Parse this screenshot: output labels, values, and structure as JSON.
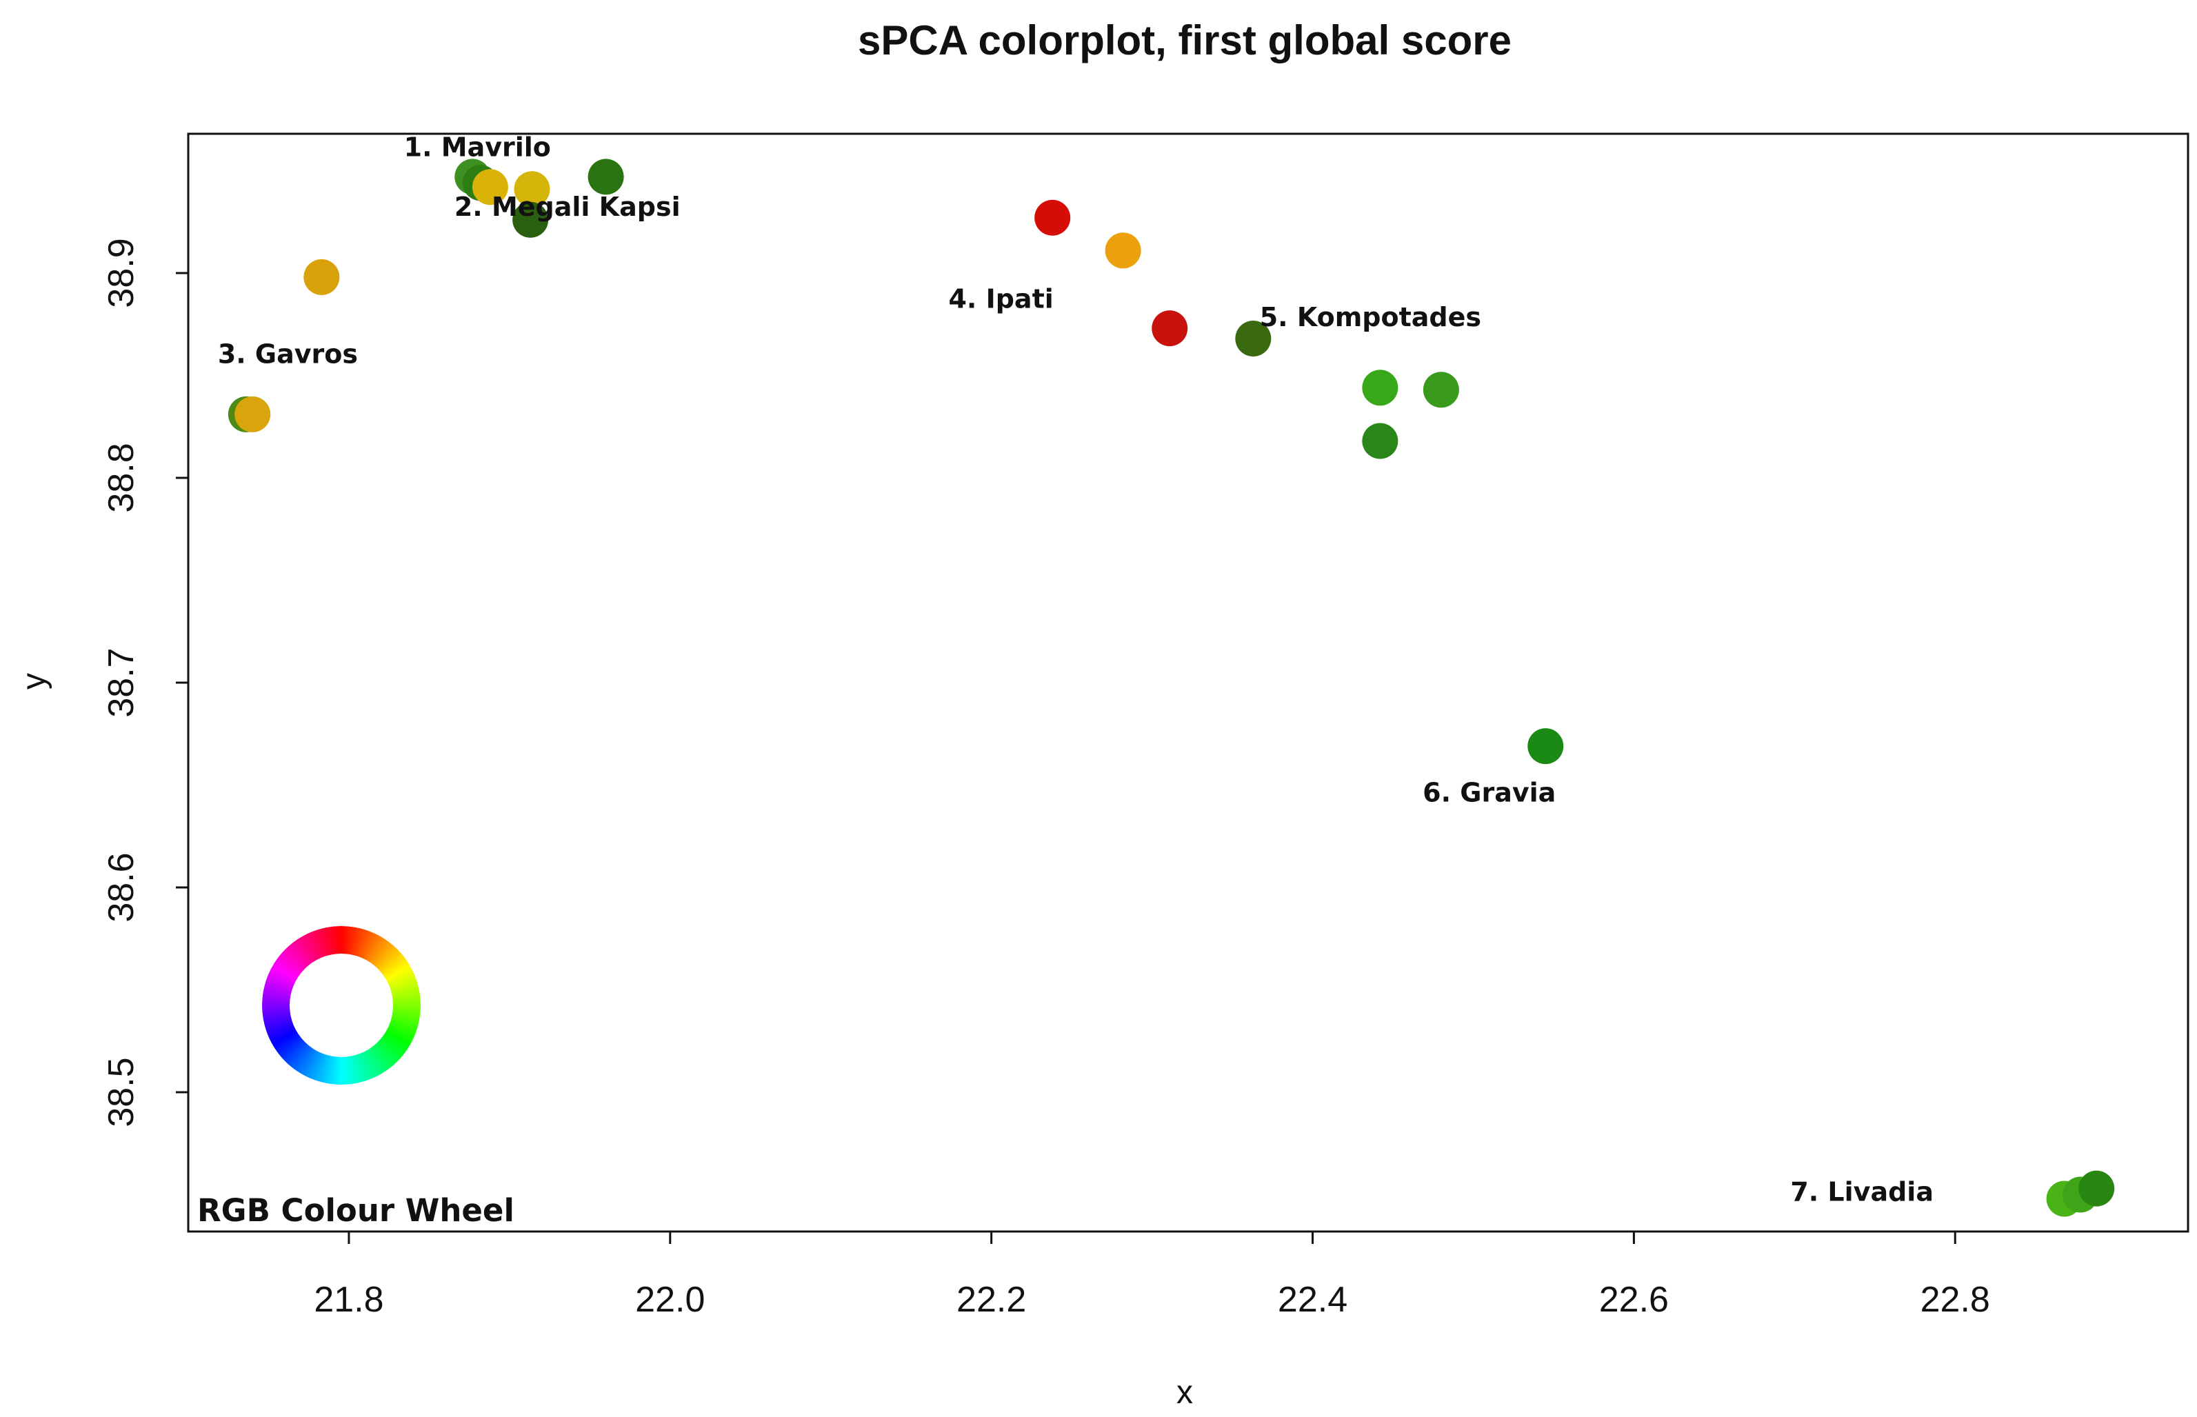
{
  "chart_data": {
    "type": "scatter",
    "title": "sPCA colorplot, first global score",
    "xlabel": "x",
    "ylabel": "y",
    "xlim": [
      21.7,
      22.945
    ],
    "ylim": [
      38.432,
      38.968
    ],
    "xticks": [
      21.8,
      22.0,
      22.2,
      22.4,
      22.6,
      22.8
    ],
    "xtick_labels": [
      "21.8",
      "22.0",
      "22.2",
      "22.4",
      "22.6",
      "22.8"
    ],
    "yticks": [
      38.5,
      38.6,
      38.7,
      38.8,
      38.9
    ],
    "ytick_labels": [
      "38.5",
      "38.6",
      "38.7",
      "38.8",
      "38.9"
    ],
    "grid": false,
    "points": [
      {
        "x": 21.877,
        "y": 38.947,
        "color": "#3d8f22"
      },
      {
        "x": 21.882,
        "y": 38.944,
        "color": "#2e7d12"
      },
      {
        "x": 21.888,
        "y": 38.942,
        "color": "#d9b308"
      },
      {
        "x": 21.914,
        "y": 38.941,
        "color": "#d6b50a"
      },
      {
        "x": 21.913,
        "y": 38.926,
        "color": "#2a5f10"
      },
      {
        "x": 21.96,
        "y": 38.947,
        "color": "#2a7312"
      },
      {
        "x": 21.783,
        "y": 38.898,
        "color": "#d9a20a"
      },
      {
        "x": 21.736,
        "y": 38.831,
        "color": "#4c8a14"
      },
      {
        "x": 21.74,
        "y": 38.831,
        "color": "#d9a40c"
      },
      {
        "x": 22.238,
        "y": 38.927,
        "color": "#d60d07"
      },
      {
        "x": 22.282,
        "y": 38.911,
        "color": "#eda00d"
      },
      {
        "x": 22.311,
        "y": 38.873,
        "color": "#c9120b"
      },
      {
        "x": 22.363,
        "y": 38.868,
        "color": "#3a6910"
      },
      {
        "x": 22.442,
        "y": 38.844,
        "color": "#38a818"
      },
      {
        "x": 22.48,
        "y": 38.843,
        "color": "#3a9a1c"
      },
      {
        "x": 22.442,
        "y": 38.818,
        "color": "#2a8618"
      },
      {
        "x": 22.545,
        "y": 38.669,
        "color": "#1b8a14"
      },
      {
        "x": 22.868,
        "y": 38.448,
        "color": "#4ab416"
      },
      {
        "x": 22.878,
        "y": 38.45,
        "color": "#3ea418"
      },
      {
        "x": 22.888,
        "y": 38.453,
        "color": "#2a8612"
      }
    ],
    "annotations": [
      {
        "text": "1. Mavrilo",
        "x": 21.88,
        "y": 38.957
      },
      {
        "text": "2. Megali Kapsi",
        "x": 21.936,
        "y": 38.928
      },
      {
        "text": "3. Gavros",
        "x": 21.762,
        "y": 38.856
      },
      {
        "text": "4. Ipati",
        "x": 22.206,
        "y": 38.883
      },
      {
        "text": "5. Kompotades",
        "x": 22.436,
        "y": 38.874
      },
      {
        "text": "6. Gravia",
        "x": 22.51,
        "y": 38.642
      },
      {
        "text": "7. Livadia",
        "x": 22.742,
        "y": 38.447
      }
    ],
    "colour_wheel_label": "RGB Colour Wheel"
  }
}
